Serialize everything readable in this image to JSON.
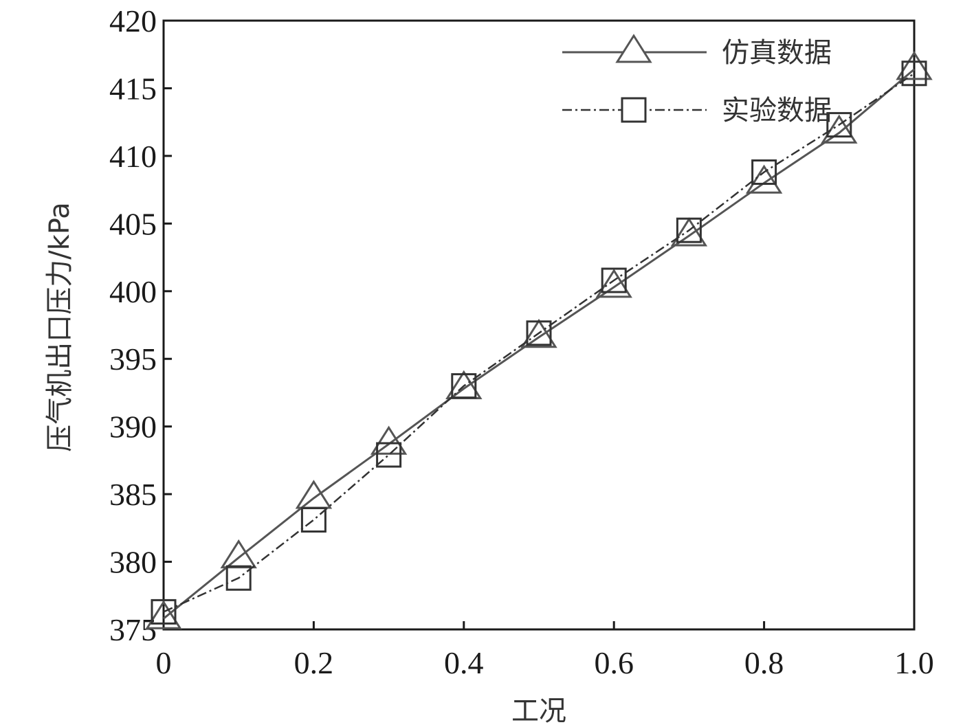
{
  "chart_data": {
    "type": "line",
    "xlabel": "工况",
    "ylabel": "压气机出口压力/kPa",
    "xlim": [
      0,
      1.0
    ],
    "ylim": [
      375,
      420
    ],
    "x_ticks": [
      0,
      0.2,
      0.4,
      0.6,
      0.8,
      1.0
    ],
    "x_tick_labels": [
      "0",
      "0.2",
      "0.4",
      "0.6",
      "0.8",
      "1.0"
    ],
    "y_ticks": [
      375,
      380,
      385,
      390,
      395,
      400,
      405,
      410,
      415,
      420
    ],
    "y_tick_labels": [
      "375",
      "380",
      "385",
      "390",
      "395",
      "400",
      "405",
      "410",
      "415",
      "420"
    ],
    "grid": false,
    "legend_position": "top-right",
    "x": [
      0,
      0.1,
      0.2,
      0.3,
      0.4,
      0.5,
      0.6,
      0.7,
      0.8,
      0.9,
      1.0
    ],
    "series": [
      {
        "name": "仿真数据",
        "marker": "triangle",
        "line_style": "solid",
        "color": "#555555",
        "values": [
          375.8,
          380.3,
          384.7,
          388.7,
          392.8,
          396.6,
          400.3,
          404.1,
          408.0,
          411.7,
          416.4
        ]
      },
      {
        "name": "实验数据",
        "marker": "square",
        "line_style": "dash-dot",
        "color": "#333333",
        "values": [
          376.3,
          378.8,
          383.1,
          387.9,
          393.0,
          396.9,
          400.8,
          404.5,
          408.8,
          412.3,
          416.1
        ]
      }
    ]
  }
}
